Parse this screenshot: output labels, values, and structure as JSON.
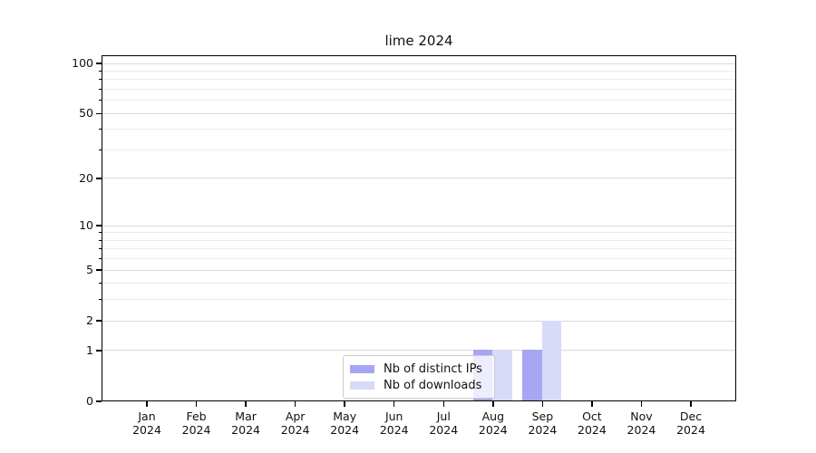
{
  "title": "lime 2024",
  "colors": {
    "background": "#ffffff",
    "axis": "#000000",
    "grid_major": "#d9d9d9",
    "grid_minor": "#ececec",
    "legend_border": "#cccccc",
    "text": "#111111"
  },
  "chart_data": {
    "type": "bar",
    "title": "lime 2024",
    "categories": [
      "Jan 2024",
      "Feb 2024",
      "Mar 2024",
      "Apr 2024",
      "May 2024",
      "Jun 2024",
      "Jul 2024",
      "Aug 2024",
      "Sep 2024",
      "Oct 2024",
      "Nov 2024",
      "Dec 2024"
    ],
    "series": [
      {
        "name": "Nb of distinct IPs",
        "color": "#a6a6f5",
        "values": [
          0,
          0,
          0,
          0,
          0,
          0,
          0,
          1,
          1,
          0,
          0,
          0
        ]
      },
      {
        "name": "Nb of downloads",
        "color": "#d9d9f8",
        "values": [
          0,
          0,
          0,
          0,
          0,
          0,
          0,
          1,
          2,
          0,
          0,
          0
        ]
      }
    ],
    "xlabel": "",
    "ylabel": "",
    "yscale": "log1p",
    "ylim": [
      0,
      112
    ],
    "y_major_ticks": [
      0,
      1,
      2,
      5,
      10,
      20,
      50,
      100
    ],
    "y_minor_ticks": [
      3,
      4,
      6,
      7,
      8,
      9,
      30,
      40,
      60,
      70,
      80,
      90
    ],
    "grid": true,
    "legend_position": "lower-center"
  }
}
